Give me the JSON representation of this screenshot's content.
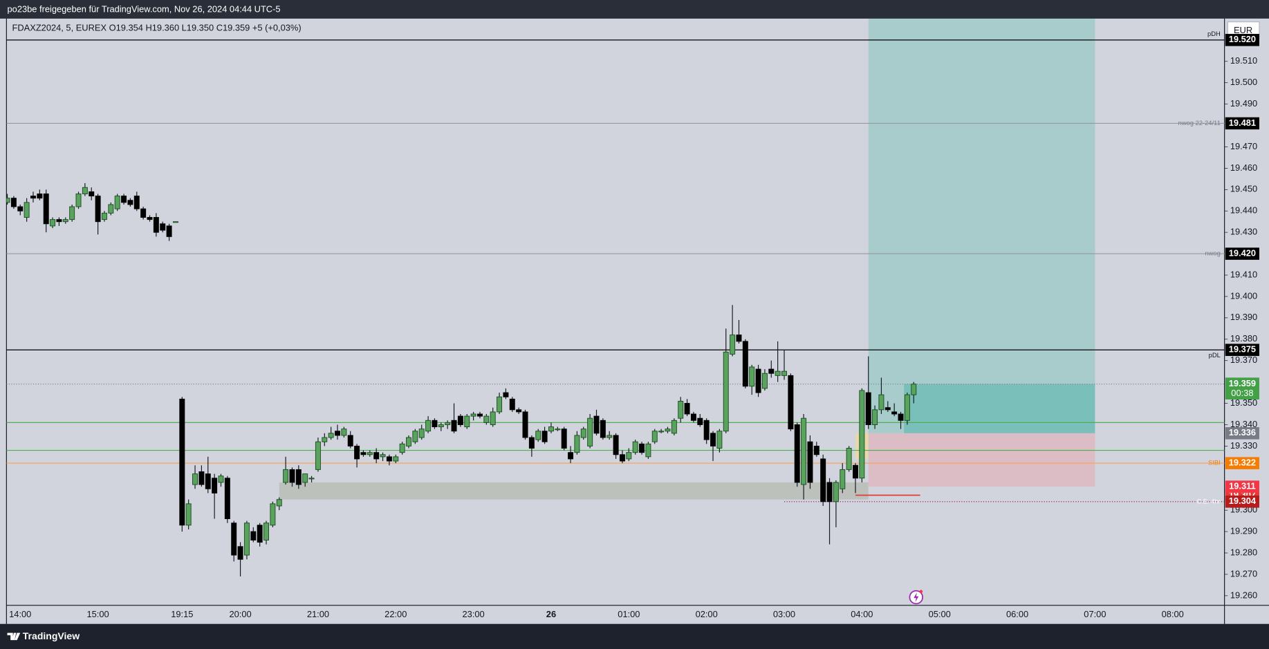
{
  "chart_data": {
    "type": "candlestick",
    "title": "po23be freigegeben für TradingView.com, Nov 26, 2024 04:44 UTC-5",
    "subtitle": "FDAXZ2024, 5, EUREX  O19.354  H19.360  L19.350  C19.359  +5 (+0,03%)",
    "currency": "EUR",
    "brand": "TradingView",
    "up_color": "#5aa35e",
    "down_color": "#000000",
    "wick_color": "#131722",
    "background": "#d1d4dc",
    "ylim": [
      19.2555,
      19.53
    ],
    "yticks": [
      {
        "value": 19.51,
        "label": "19.510"
      },
      {
        "value": 19.5,
        "label": "19.500"
      },
      {
        "value": 19.49,
        "label": "19.490"
      },
      {
        "value": 19.47,
        "label": "19.470"
      },
      {
        "value": 19.46,
        "label": "19.460"
      },
      {
        "value": 19.45,
        "label": "19.450"
      },
      {
        "value": 19.44,
        "label": "19.440"
      },
      {
        "value": 19.43,
        "label": "19.430"
      },
      {
        "value": 19.41,
        "label": "19.410"
      },
      {
        "value": 19.4,
        "label": "19.400"
      },
      {
        "value": 19.39,
        "label": "19.390"
      },
      {
        "value": 19.38,
        "label": "19.380"
      },
      {
        "value": 19.37,
        "label": "19.370"
      },
      {
        "value": 19.35,
        "label": "19.350"
      },
      {
        "value": 19.34,
        "label": "19.340"
      },
      {
        "value": 19.33,
        "label": "19.330"
      },
      {
        "value": 19.3,
        "label": "19.300"
      },
      {
        "value": 19.29,
        "label": "19.290"
      },
      {
        "value": 19.28,
        "label": "19.280"
      },
      {
        "value": 19.27,
        "label": "19.270"
      },
      {
        "value": 19.26,
        "label": "19.260"
      }
    ],
    "grid": false,
    "categories": [
      null,
      null,
      "14:00",
      null,
      null,
      null,
      null,
      null,
      null,
      null,
      null,
      null,
      null,
      null,
      "15:00",
      null,
      null,
      null,
      null,
      null,
      null,
      null,
      null,
      null,
      null,
      null,
      null,
      "19:15",
      null,
      null,
      null,
      null,
      null,
      null,
      null,
      null,
      "20:00",
      null,
      null,
      null,
      null,
      null,
      null,
      null,
      null,
      null,
      null,
      null,
      "21:00",
      null,
      null,
      null,
      null,
      null,
      null,
      null,
      null,
      null,
      null,
      null,
      "22:00",
      null,
      null,
      null,
      null,
      null,
      null,
      null,
      null,
      null,
      null,
      null,
      "23:00",
      null,
      null,
      null,
      null,
      null,
      null,
      null,
      null,
      null,
      null,
      null,
      "26",
      null,
      null,
      null,
      null,
      null,
      null,
      null,
      null,
      null,
      null,
      null,
      "01:00",
      null,
      null,
      null,
      null,
      null,
      null,
      null,
      null,
      null,
      null,
      null,
      "02:00",
      null,
      null,
      null,
      null,
      null,
      null,
      null,
      null,
      null,
      null,
      null,
      "03:00",
      null,
      null,
      null,
      null,
      null,
      null,
      null,
      null,
      null,
      null,
      null,
      "04:00",
      null,
      null,
      null,
      null,
      null,
      null,
      null,
      null,
      null,
      null,
      null,
      "05:00",
      null,
      null,
      null,
      null,
      null,
      null,
      null,
      null,
      null,
      null,
      null,
      "06:00",
      null,
      null,
      null,
      null,
      null,
      null,
      null,
      null,
      null,
      null,
      null,
      "07:00",
      null,
      null,
      null,
      null,
      null,
      null,
      null,
      null,
      null,
      null,
      null,
      "08:00"
    ],
    "series": [
      {
        "open": [
          19.444,
          19.446,
          19.442,
          19.437,
          19.447,
          19.448,
          19.448,
          19.433,
          19.436,
          19.435,
          19.436,
          19.442,
          19.448,
          19.449,
          19.447,
          19.436,
          19.439,
          19.441,
          19.447,
          19.445,
          19.447,
          19.441,
          19.437,
          19.437,
          19.434,
          19.433,
          19.435,
          19.352,
          19.293,
          19.312,
          19.318,
          19.317,
          19.315,
          19.313,
          19.315,
          19.294,
          19.283,
          19.279,
          19.29,
          19.293,
          19.286,
          19.293,
          19.302,
          19.313,
          19.319,
          19.319,
          19.313,
          19.315,
          19.319,
          19.332,
          19.334,
          19.337,
          19.335,
          19.335,
          19.33,
          19.327,
          19.326,
          19.327,
          19.325,
          19.325,
          19.323,
          19.327,
          19.33,
          19.332,
          19.334,
          19.337,
          19.342,
          19.339,
          19.34,
          19.342,
          19.344,
          19.339,
          19.344,
          19.345,
          19.341,
          19.34,
          19.346,
          19.355,
          19.352,
          19.347,
          19.346,
          19.334,
          19.333,
          19.337,
          19.337,
          19.338,
          19.338,
          19.327,
          19.327,
          19.334,
          19.33,
          19.344,
          19.342,
          19.334,
          19.335,
          19.326,
          19.324,
          19.327,
          19.331,
          19.325,
          19.332,
          19.337,
          19.337,
          19.336,
          19.343,
          19.35,
          19.345,
          19.343,
          19.342,
          19.336,
          19.329,
          19.337,
          19.373,
          19.382,
          19.379,
          19.358,
          19.366,
          19.357,
          19.366,
          19.363,
          19.363,
          19.363,
          19.34,
          19.312,
          19.332,
          19.33,
          19.324,
          19.313,
          19.304,
          19.31,
          19.319,
          19.321,
          19.315,
          19.355,
          19.34,
          19.347,
          19.348,
          19.346,
          19.345,
          19.342,
          19.354,
          null,
          null,
          null,
          null,
          null,
          null,
          null,
          null,
          null,
          null,
          null,
          null,
          null,
          null,
          null,
          null,
          null,
          null,
          null,
          null,
          null,
          null,
          null,
          null,
          null,
          null,
          null,
          null,
          null,
          null,
          null,
          null,
          null,
          null,
          null,
          null,
          null,
          null,
          null,
          null
        ],
        "high": [
          19.448,
          19.447,
          19.443,
          19.446,
          19.449,
          19.45,
          19.45,
          19.437,
          19.437,
          19.437,
          19.443,
          19.449,
          19.453,
          19.451,
          19.448,
          19.44,
          19.444,
          19.448,
          19.448,
          19.446,
          19.449,
          19.442,
          19.438,
          19.439,
          19.435,
          19.434,
          19.435,
          19.353,
          19.305,
          19.321,
          19.321,
          19.325,
          19.317,
          19.317,
          19.316,
          19.295,
          19.285,
          19.295,
          19.292,
          19.294,
          19.295,
          19.304,
          19.306,
          19.325,
          19.32,
          19.321,
          19.317,
          19.316,
          19.334,
          19.336,
          19.339,
          19.34,
          19.339,
          19.337,
          19.331,
          19.328,
          19.328,
          19.329,
          19.327,
          19.326,
          19.326,
          19.332,
          19.335,
          19.338,
          19.34,
          19.344,
          19.343,
          19.341,
          19.342,
          19.35,
          19.345,
          19.345,
          19.346,
          19.346,
          19.345,
          19.348,
          19.355,
          19.357,
          19.353,
          19.348,
          19.347,
          19.335,
          19.338,
          19.339,
          19.341,
          19.339,
          19.339,
          19.33,
          19.337,
          19.339,
          19.345,
          19.347,
          19.343,
          19.337,
          19.336,
          19.328,
          19.329,
          19.333,
          19.332,
          19.332,
          19.338,
          19.338,
          19.339,
          19.343,
          19.353,
          19.352,
          19.346,
          19.345,
          19.343,
          19.337,
          19.338,
          19.385,
          19.396,
          19.389,
          19.38,
          19.368,
          19.368,
          19.366,
          19.37,
          19.379,
          19.375,
          19.364,
          19.341,
          19.345,
          19.335,
          19.332,
          19.326,
          19.315,
          19.314,
          19.322,
          19.33,
          19.322,
          19.357,
          19.372,
          19.349,
          19.362,
          19.351,
          19.35,
          19.346,
          19.355,
          19.36,
          null,
          null,
          null,
          null,
          null,
          null,
          null,
          null,
          null,
          null,
          null,
          null,
          null,
          null,
          null,
          null,
          null,
          null,
          null,
          null,
          null,
          null,
          null,
          null,
          null,
          null,
          null,
          null,
          null,
          null,
          null,
          null,
          null,
          null,
          null,
          null,
          null,
          null,
          null,
          null
        ],
        "low": [
          19.443,
          19.441,
          19.438,
          19.435,
          19.444,
          19.445,
          19.43,
          19.432,
          19.433,
          19.434,
          19.435,
          19.441,
          19.447,
          19.445,
          19.429,
          19.435,
          19.438,
          19.44,
          19.443,
          19.442,
          19.44,
          19.436,
          19.435,
          19.428,
          19.43,
          19.426,
          19.435,
          19.29,
          19.291,
          19.31,
          19.311,
          19.308,
          19.296,
          19.311,
          19.294,
          19.276,
          19.269,
          19.277,
          19.285,
          19.283,
          19.284,
          19.292,
          19.3,
          19.312,
          19.311,
          19.31,
          19.311,
          19.313,
          19.318,
          19.33,
          19.333,
          19.333,
          19.334,
          19.329,
          19.32,
          19.325,
          19.325,
          19.322,
          19.323,
          19.321,
          19.322,
          19.326,
          19.329,
          19.331,
          19.333,
          19.336,
          19.338,
          19.337,
          19.338,
          19.336,
          19.339,
          19.338,
          19.342,
          19.343,
          19.34,
          19.339,
          19.345,
          19.352,
          19.346,
          19.345,
          19.333,
          19.325,
          19.332,
          19.331,
          19.336,
          19.337,
          19.328,
          19.322,
          19.326,
          19.333,
          19.329,
          19.335,
          19.333,
          19.333,
          19.324,
          19.322,
          19.323,
          19.326,
          19.326,
          19.324,
          19.331,
          19.336,
          19.336,
          19.335,
          19.341,
          19.344,
          19.341,
          19.339,
          19.331,
          19.323,
          19.327,
          19.336,
          19.372,
          19.378,
          19.357,
          19.354,
          19.353,
          19.356,
          19.362,
          19.36,
          19.361,
          19.337,
          19.311,
          19.305,
          19.31,
          19.325,
          19.302,
          19.284,
          19.292,
          19.308,
          19.318,
          19.308,
          19.313,
          19.338,
          19.338,
          19.345,
          19.346,
          19.344,
          19.338,
          19.34,
          19.35,
          null,
          null,
          null,
          null,
          null,
          null,
          null,
          null,
          null,
          null,
          null,
          null,
          null,
          null,
          null,
          null,
          null,
          null,
          null,
          null,
          null,
          null,
          null,
          null,
          null,
          null,
          null,
          null,
          null,
          null,
          null,
          null,
          null,
          null,
          null,
          null,
          null,
          null,
          null,
          null
        ],
        "close": [
          19.446,
          19.442,
          19.44,
          19.444,
          19.446,
          19.446,
          19.434,
          19.436,
          19.435,
          19.436,
          19.442,
          19.448,
          19.451,
          19.447,
          19.435,
          19.439,
          19.443,
          19.447,
          19.444,
          19.443,
          19.441,
          19.437,
          19.436,
          19.43,
          19.431,
          19.428,
          19.435,
          19.293,
          19.303,
          19.317,
          19.312,
          19.31,
          19.308,
          19.316,
          19.296,
          19.279,
          19.277,
          19.294,
          19.286,
          19.285,
          19.294,
          19.303,
          19.305,
          19.319,
          19.313,
          19.312,
          19.317,
          19.315,
          19.332,
          19.334,
          19.336,
          19.335,
          19.338,
          19.33,
          19.324,
          19.326,
          19.327,
          19.324,
          19.326,
          19.323,
          19.325,
          19.331,
          19.334,
          19.337,
          19.338,
          19.342,
          19.339,
          19.34,
          19.341,
          19.337,
          19.34,
          19.344,
          19.345,
          19.344,
          19.344,
          19.346,
          19.353,
          19.353,
          19.347,
          19.346,
          19.334,
          19.329,
          19.337,
          19.332,
          19.339,
          19.338,
          19.329,
          19.324,
          19.335,
          19.338,
          19.343,
          19.336,
          19.334,
          19.335,
          19.326,
          19.323,
          19.327,
          19.332,
          19.327,
          19.331,
          19.337,
          19.337,
          19.338,
          19.342,
          19.351,
          19.345,
          19.342,
          19.34,
          19.333,
          19.33,
          19.337,
          19.374,
          19.382,
          19.379,
          19.358,
          19.367,
          19.355,
          19.364,
          19.364,
          19.365,
          19.365,
          19.338,
          19.313,
          19.343,
          19.313,
          19.326,
          19.304,
          19.304,
          19.313,
          19.319,
          19.329,
          19.315,
          19.356,
          19.34,
          19.347,
          19.354,
          19.347,
          19.345,
          19.342,
          19.354,
          19.359,
          null,
          null,
          null,
          null,
          null,
          null,
          null,
          null,
          null,
          null,
          null,
          null,
          null,
          null,
          null,
          null,
          null,
          null,
          null,
          null,
          null,
          null,
          null,
          null,
          null,
          null,
          null,
          null,
          null,
          null,
          null,
          null,
          null,
          null,
          null,
          null,
          null,
          null,
          null,
          null
        ]
      }
    ],
    "levels": [
      {
        "text": "pDH",
        "value": 19.52,
        "label": "19.520",
        "color": "#000000",
        "box": "#000000",
        "text_color": "#131722"
      },
      {
        "text": "nwog 22-24/11",
        "value": 19.481,
        "color": "#9598a1",
        "box": "#000000",
        "text_color": "#787b86"
      },
      {
        "text": "nwog",
        "value": 19.42,
        "label": "19.420",
        "color": "#9598a1",
        "box": "#000000",
        "text_color": "#787b86"
      },
      {
        "text": "pDL",
        "value": 19.375,
        "color": "#000000",
        "box": "#000000",
        "text_color": "#131722"
      },
      {
        "value": 19.359,
        "color": "#787b86",
        "box": "#43a047",
        "dotted": true,
        "countdown": "00:38"
      },
      {
        "value": 19.341,
        "color": "#4caf50"
      },
      {
        "value": 19.328,
        "color": "#4caf50"
      },
      {
        "text": "SIBI",
        "value": 19.322,
        "color": "#f7a35c",
        "box": "#f57c00",
        "text_color": "#f57c00"
      },
      {
        "value": 19.307,
        "color": "#e53935",
        "box": "#e53935",
        "start": 131,
        "end": 141
      },
      {
        "text": "C.E. 4hr",
        "value": 19.304,
        "color": "#880e4f",
        "box": "#b71c1c",
        "text_color": "#ffffff",
        "dotted": true,
        "start": 120
      }
    ],
    "zones": [
      {
        "low": 19.305,
        "high": 19.313,
        "start": 42,
        "end": 133,
        "color": "#b9bdb6"
      },
      {
        "low": 19.324,
        "high": 19.336,
        "start": 131,
        "end": 139,
        "color": "#ead9a0"
      }
    ],
    "position": {
      "entry": 19.336,
      "stop": 19.311,
      "start": 133,
      "end": 168,
      "profit_color": "#a8cccb",
      "loss_color": "#dcbcc5",
      "entry_box": "#787b86",
      "stop_box": "#f23645"
    }
  }
}
